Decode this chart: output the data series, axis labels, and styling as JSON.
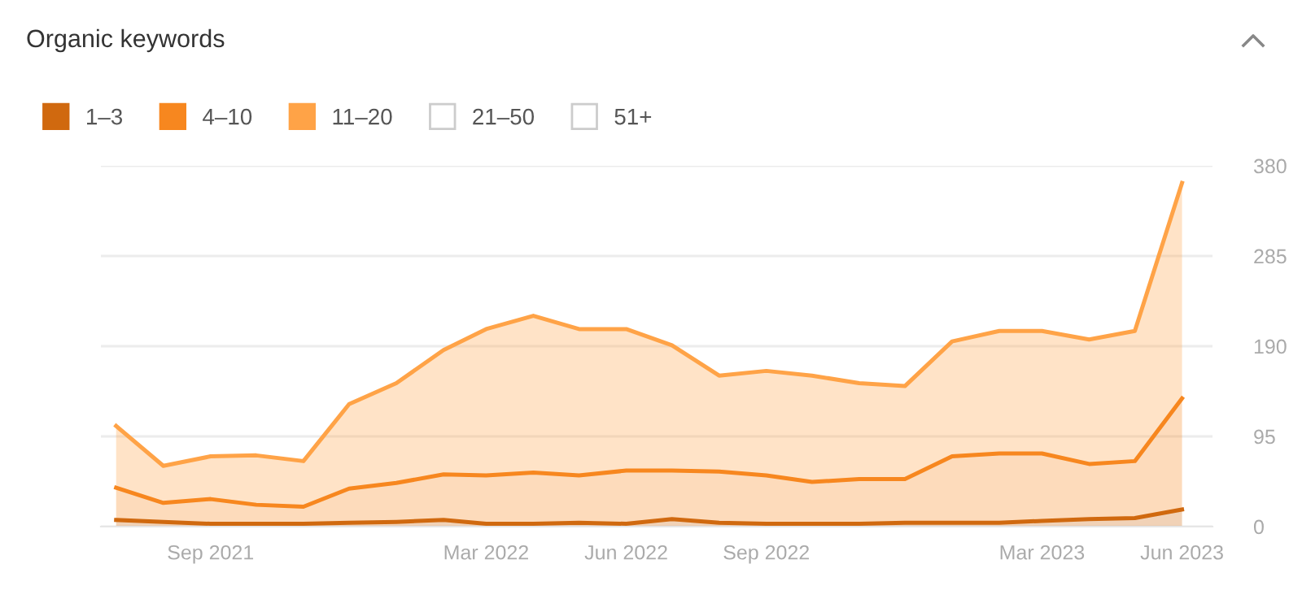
{
  "chart_data": {
    "type": "area",
    "title": "Organic keywords",
    "stacked": true,
    "x": [
      "2021-07",
      "2021-08",
      "2021-09",
      "2021-10",
      "2021-11",
      "2021-12",
      "2022-01",
      "2022-02",
      "2022-03",
      "2022-04",
      "2022-05",
      "2022-06",
      "2022-07",
      "2022-08",
      "2022-09",
      "2022-10",
      "2022-11",
      "2022-12",
      "2023-01",
      "2023-02",
      "2023-03",
      "2023-04",
      "2023-05",
      "2023-06"
    ],
    "series": [
      {
        "name": "1–3",
        "color": "#d0690f",
        "values": [
          7,
          5,
          3,
          3,
          3,
          4,
          5,
          7,
          3,
          3,
          4,
          3,
          8,
          4,
          3,
          3,
          3,
          4,
          4,
          4,
          6,
          8,
          9,
          18
        ]
      },
      {
        "name": "4–10",
        "color": "#f7871f",
        "values": [
          34,
          20,
          26,
          20,
          18,
          36,
          41,
          48,
          51,
          54,
          50,
          56,
          51,
          54,
          51,
          44,
          47,
          46,
          70,
          73,
          71,
          58,
          60,
          117
        ]
      },
      {
        "name": "11–20",
        "color": "#ffa347",
        "values": [
          65,
          39,
          45,
          52,
          48,
          89,
          105,
          131,
          154,
          165,
          154,
          149,
          132,
          101,
          110,
          112,
          101,
          98,
          121,
          129,
          129,
          131,
          137,
          227
        ]
      },
      {
        "name": "21–50",
        "color": "#cccccc",
        "values": [
          null,
          null,
          null,
          null,
          null,
          null,
          null,
          null,
          null,
          null,
          null,
          null,
          null,
          null,
          null,
          null,
          null,
          null,
          null,
          null,
          null,
          null,
          null,
          null
        ]
      },
      {
        "name": "51+",
        "color": "#cccccc",
        "values": [
          null,
          null,
          null,
          null,
          null,
          null,
          null,
          null,
          null,
          null,
          null,
          null,
          null,
          null,
          null,
          null,
          null,
          null,
          null,
          null,
          null,
          null,
          null,
          null
        ]
      }
    ],
    "xlim": [
      "2021-06-21",
      "2023-06-21"
    ],
    "xticks": [
      {
        "value": "2021-09",
        "label": "Sep 2021"
      },
      {
        "value": "2022-03",
        "label": "Mar 2022"
      },
      {
        "value": "2022-06",
        "label": "Jun 2022"
      },
      {
        "value": "2022-09",
        "label": "Sep 2022"
      },
      {
        "value": "2023-03",
        "label": "Mar 2023"
      },
      {
        "value": "2023-06",
        "label": "Jun 2023"
      }
    ],
    "ylim": [
      0,
      380
    ],
    "yticks": [
      0,
      95,
      190,
      285,
      380
    ],
    "grid": "y",
    "legend": "top left"
  }
}
